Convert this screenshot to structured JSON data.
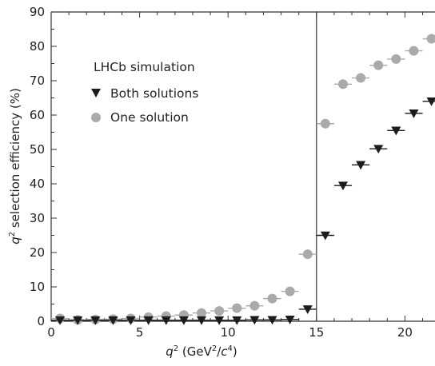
{
  "chart_data": {
    "type": "scatter",
    "xlabel": {
      "pre": "q",
      "pre_sup": "2",
      "mid": " (GeV",
      "mid_sup": "2",
      "mid2": "/",
      "c": "c",
      "c_sup": "4",
      "post": ")"
    },
    "ylabel": {
      "pre": "q",
      "pre_sup": "2",
      "post": " selection efficiency (%)"
    },
    "xlim": [
      0,
      21.7
    ],
    "ylim": [
      0,
      90
    ],
    "x_ticks": [
      0,
      5,
      10,
      15,
      20
    ],
    "y_ticks": [
      0,
      10,
      20,
      30,
      40,
      50,
      60,
      70,
      80,
      90
    ],
    "vline_x": 15,
    "legend": {
      "title": "LHCb simulation",
      "placement": "top-left",
      "entries": [
        "Both solutions",
        "One solution"
      ]
    },
    "colors": {
      "both": "#1c1c1c",
      "one": "#aaaaaa",
      "axis": "#333333"
    },
    "series": [
      {
        "name": "Both solutions",
        "marker": "triangle-down",
        "x": [
          0.5,
          1.5,
          2.5,
          3.5,
          4.5,
          5.5,
          6.5,
          7.5,
          8.5,
          9.5,
          10.5,
          11.5,
          12.5,
          13.5,
          14.5,
          15.5,
          16.5,
          17.5,
          18.5,
          19.5,
          20.5,
          21.5
        ],
        "y": [
          0.3,
          0.3,
          0.3,
          0.3,
          0.3,
          0.3,
          0.3,
          0.3,
          0.3,
          0.3,
          0.3,
          0.4,
          0.4,
          0.5,
          3.5,
          25,
          39.5,
          45.5,
          50.2,
          55.5,
          60.5,
          64
        ]
      },
      {
        "name": "One solution",
        "marker": "circle",
        "x": [
          0.5,
          1.5,
          2.5,
          3.5,
          4.5,
          5.5,
          6.5,
          7.5,
          8.5,
          9.5,
          10.5,
          11.5,
          12.5,
          13.5,
          14.5,
          15.5,
          16.5,
          17.5,
          18.5,
          19.5,
          20.5,
          21.5
        ],
        "y": [
          0.8,
          0.4,
          0.5,
          0.6,
          0.8,
          1.2,
          1.5,
          1.8,
          2.4,
          3.0,
          3.8,
          4.5,
          6.6,
          8.7,
          19.5,
          57.5,
          69,
          70.8,
          74.5,
          76.3,
          78.7,
          82.2
        ]
      }
    ]
  }
}
